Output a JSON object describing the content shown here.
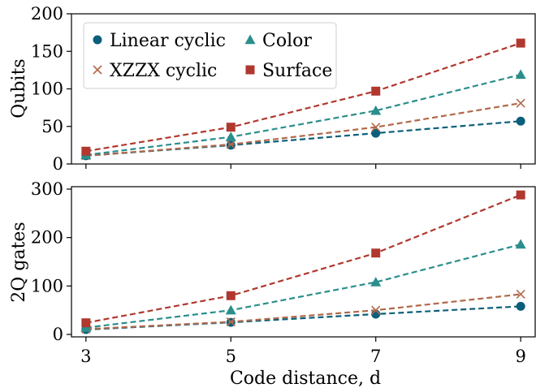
{
  "chart_data": [
    {
      "type": "line",
      "panel": "top",
      "ylabel": "Qubits",
      "xlabel": "",
      "x": [
        3,
        5,
        7,
        9
      ],
      "xticks": [
        3,
        5,
        7,
        9
      ],
      "yticks": [
        0,
        50,
        100,
        150,
        200
      ],
      "ylim": [
        0,
        200
      ],
      "grid": false,
      "legend": "top-left",
      "series": [
        {
          "name": "Linear cyclic",
          "marker": "circle",
          "color": "#0b5f7a",
          "values": [
            11,
            25,
            41,
            57
          ]
        },
        {
          "name": "XZZX cyclic",
          "marker": "x",
          "color": "#b0684a",
          "values": [
            11,
            26,
            49,
            81
          ]
        },
        {
          "name": "Color",
          "marker": "triangle",
          "color": "#2a8e8c",
          "values": [
            12,
            36,
            71,
            119
          ]
        },
        {
          "name": "Surface",
          "marker": "square",
          "color": "#b0382f",
          "values": [
            17,
            49,
            97,
            161
          ]
        }
      ]
    },
    {
      "type": "line",
      "panel": "bottom",
      "ylabel": "2Q gates",
      "xlabel": "Code distance, d",
      "x": [
        3,
        5,
        7,
        9
      ],
      "xticks": [
        3,
        5,
        7,
        9
      ],
      "yticks": [
        0,
        100,
        200,
        300
      ],
      "ylim": [
        -5,
        305
      ],
      "grid": false,
      "series": [
        {
          "name": "Linear cyclic",
          "marker": "circle",
          "color": "#0b5f7a",
          "values": [
            10,
            25,
            42,
            58
          ]
        },
        {
          "name": "XZZX cyclic",
          "marker": "x",
          "color": "#b0684a",
          "values": [
            11,
            26,
            50,
            83
          ]
        },
        {
          "name": "Color",
          "marker": "triangle",
          "color": "#2a8e8c",
          "values": [
            14,
            50,
            108,
            186
          ]
        },
        {
          "name": "Surface",
          "marker": "square",
          "color": "#b0382f",
          "values": [
            24,
            80,
            168,
            288
          ]
        }
      ]
    }
  ]
}
